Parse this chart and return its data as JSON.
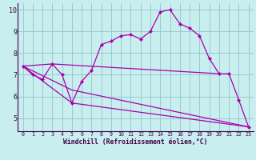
{
  "title": "",
  "xlabel": "Windchill (Refroidissement éolien,°C)",
  "ylabel": "",
  "bg_color": "#c8eef0",
  "line_color": "#aa00aa",
  "grid_color": "#99cccc",
  "axis_color": "#440044",
  "xlim": [
    -0.5,
    23.5
  ],
  "ylim": [
    4.4,
    10.3
  ],
  "xticks": [
    0,
    1,
    2,
    3,
    4,
    5,
    6,
    7,
    8,
    9,
    10,
    11,
    12,
    13,
    14,
    15,
    16,
    17,
    18,
    19,
    20,
    21,
    22,
    23
  ],
  "yticks": [
    5,
    6,
    7,
    8,
    9,
    10
  ],
  "series": [
    {
      "x": [
        0,
        1,
        2,
        3,
        4,
        5,
        6,
        7,
        8,
        9,
        10,
        11,
        12,
        13,
        14,
        15,
        16,
        17,
        18,
        19,
        20,
        21,
        22,
        23
      ],
      "y": [
        7.4,
        7.0,
        6.8,
        7.5,
        7.0,
        5.7,
        6.7,
        7.2,
        8.4,
        8.55,
        8.8,
        8.85,
        8.65,
        9.0,
        9.9,
        10.0,
        9.35,
        9.15,
        8.8,
        7.75,
        7.05,
        7.05,
        5.85,
        4.6
      ],
      "has_marker": true
    },
    {
      "x": [
        0,
        3,
        20
      ],
      "y": [
        7.4,
        7.5,
        7.05
      ],
      "has_marker": false
    },
    {
      "x": [
        0,
        5,
        23
      ],
      "y": [
        7.4,
        6.3,
        4.6
      ],
      "has_marker": false
    },
    {
      "x": [
        0,
        5,
        23
      ],
      "y": [
        7.4,
        5.7,
        4.6
      ],
      "has_marker": false
    }
  ]
}
